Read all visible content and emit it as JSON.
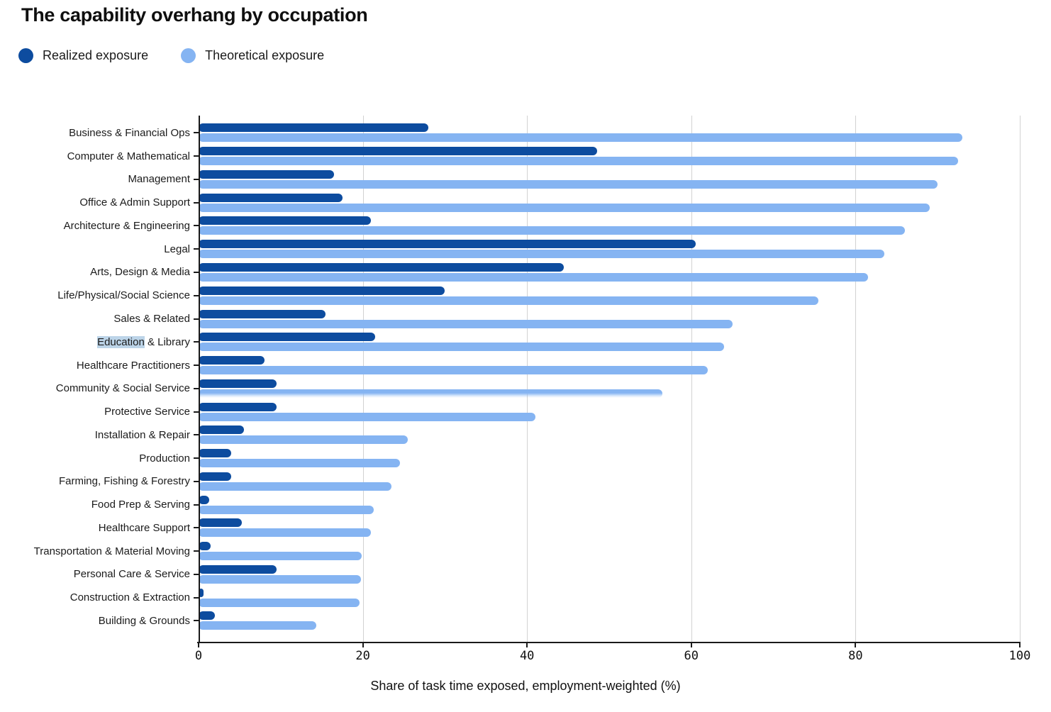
{
  "title": "The capability overhang by occupation",
  "legend": [
    {
      "label": "Realized exposure",
      "color": "#0d4c9f"
    },
    {
      "label": "Theoretical exposure",
      "color": "#85b4f2"
    }
  ],
  "chart_data": {
    "type": "bar",
    "orientation": "horizontal",
    "title": "The capability overhang by occupation",
    "xlabel": "Share of task time exposed, employment-weighted (%)",
    "ylabel": "",
    "xlim": [
      0,
      100
    ],
    "xticks": [
      "0",
      "20",
      "40",
      "60",
      "80",
      "100"
    ],
    "xtick_values": [
      0,
      20,
      40,
      60,
      80,
      100
    ],
    "grid": true,
    "legend_position": "top-left",
    "categories": [
      "Business & Financial Ops",
      "Computer & Mathematical",
      "Management",
      "Office & Admin Support",
      "Architecture & Engineering",
      "Legal",
      "Arts, Design & Media",
      "Life/Physical/Social Science",
      "Sales & Related",
      "Education & Library",
      "Healthcare Practitioners",
      "Community & Social Service",
      "Protective Service",
      "Installation & Repair",
      "Production",
      "Farming, Fishing & Forestry",
      "Food Prep & Serving",
      "Healthcare Support",
      "Transportation & Material Moving",
      "Personal Care & Service",
      "Construction & Extraction",
      "Building & Grounds"
    ],
    "series": [
      {
        "name": "Realized exposure",
        "color": "#0d4c9f",
        "values": [
          28,
          48.5,
          16.5,
          17.5,
          21,
          60.5,
          44.5,
          30,
          15.5,
          21.5,
          8,
          9.5,
          9.5,
          5.5,
          4,
          4,
          1.3,
          5.3,
          1.5,
          9.5,
          0.6,
          2
        ]
      },
      {
        "name": "Theoretical exposure",
        "color": "#85b4f2",
        "values": [
          93,
          92.5,
          90,
          89,
          86,
          83.5,
          81.5,
          75.5,
          65,
          64,
          62,
          56.5,
          41,
          25.5,
          24.5,
          23.5,
          21.3,
          21,
          19.9,
          19.8,
          19.6,
          14.3
        ]
      }
    ],
    "annotations": {
      "highlighted_label_word": "Education",
      "highlighted_category": "Education & Library",
      "faded_bar_category": "Community & Social Service"
    },
    "colors": {
      "grid": "#d2d2d2",
      "axis": "#1a1a1a",
      "label_highlight": "rgba(96,152,201,0.42)"
    }
  }
}
